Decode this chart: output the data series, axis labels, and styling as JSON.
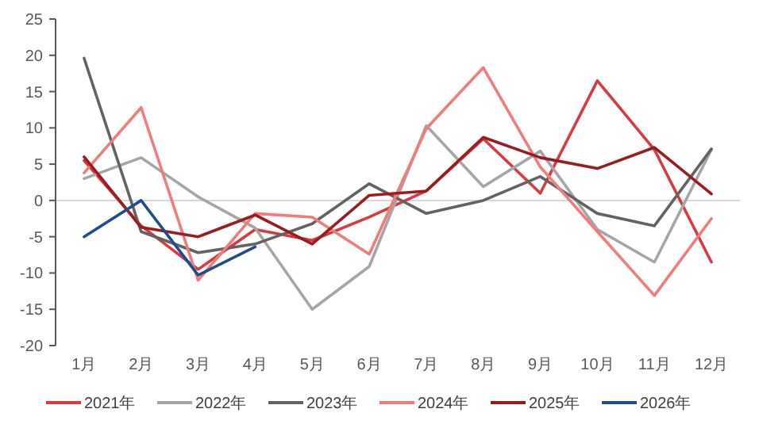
{
  "chart_data": {
    "type": "line",
    "categories": [
      "1月",
      "2月",
      "3月",
      "4月",
      "5月",
      "6月",
      "7月",
      "8月",
      "9月",
      "10月",
      "11月",
      "12月"
    ],
    "series": [
      {
        "name": "2021年",
        "color": "#d93a3f",
        "values": [
          5.5,
          -3.5,
          -9.5,
          -4,
          -5.5,
          -2.3,
          1.3,
          8.5,
          1,
          16.5,
          7,
          -8.5
        ]
      },
      {
        "name": "2022年",
        "color": "#a6a6a6",
        "values": [
          3,
          5.9,
          0.5,
          -3.8,
          -15,
          -9.1,
          10.3,
          1.9,
          6.8,
          -4,
          -8.5,
          7
        ]
      },
      {
        "name": "2023年",
        "color": "#636363",
        "values": [
          19.6,
          -4.3,
          -7.2,
          -6,
          -3.2,
          2.3,
          -1.8,
          0,
          3.3,
          -1.8,
          -3.5,
          7.1
        ]
      },
      {
        "name": "2024年",
        "color": "#f07c7c",
        "values": [
          3.8,
          12.8,
          -11,
          -1.8,
          -2.3,
          -7.4,
          9.9,
          18.3,
          4.6,
          -4.3,
          -13.1,
          -2.5
        ]
      },
      {
        "name": "2025年",
        "color": "#9b1b1e",
        "values": [
          6,
          -3.7,
          -5,
          -2,
          -6,
          0.7,
          1.3,
          8.7,
          5.9,
          4.4,
          7.3,
          0.9
        ]
      },
      {
        "name": "2026年",
        "color": "#1f4e8c",
        "values": [
          -5,
          0,
          -10.3,
          -6.4,
          null,
          null,
          null,
          null,
          null,
          null,
          null,
          null
        ]
      }
    ],
    "ylim": [
      -20,
      25
    ],
    "yticks": [
      -20,
      -15,
      -10,
      -5,
      0,
      5,
      10,
      15,
      20,
      25
    ],
    "ref_lines": [
      {
        "axis": "y",
        "value": 0,
        "color": "#d9d9d9"
      }
    ],
    "grid": false,
    "legend": "bottom",
    "marker": "none",
    "line_style": "solid"
  }
}
